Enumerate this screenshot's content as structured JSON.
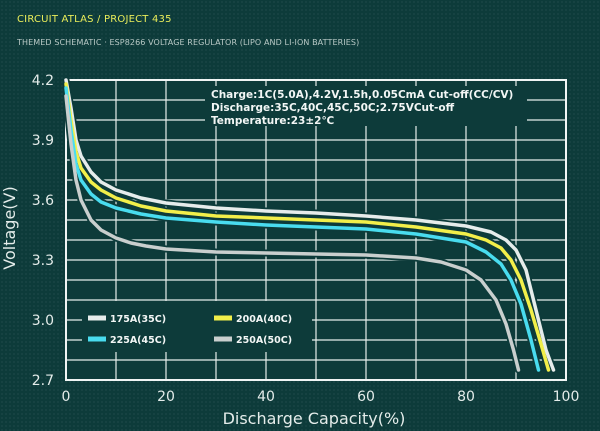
{
  "header": {
    "title": "CIRCUIT ATLAS / PROJECT 435",
    "subtitle": "THEMED SCHEMATIC · ESP8266 VOLTAGE REGULATOR (LIPO AND LI-ION BATTERIES)"
  },
  "chart_data": {
    "type": "line",
    "xlabel": "Discharge Capacity(%)",
    "ylabel": "Voltage(V)",
    "xlim": [
      0,
      100
    ],
    "ylim": [
      2.7,
      4.2
    ],
    "xticks": [
      0,
      20,
      40,
      60,
      80,
      100
    ],
    "yticks": [
      2.7,
      3.0,
      3.3,
      3.6,
      3.9,
      4.2
    ],
    "grid": true,
    "annotations": [
      "Charge:1C(5.0A),4.2V,1.5h,0.05CmA Cut-off(CC/CV)",
      "Discharge:35C,40C,45C,50C;2.75VCut-off",
      "Temperature:23±2℃"
    ],
    "legend_position": "bottom-left",
    "series": [
      {
        "name": "175A(35C)",
        "color": "#e6eceb",
        "x": [
          0,
          1,
          2,
          3,
          5,
          7,
          10,
          15,
          20,
          30,
          40,
          50,
          60,
          70,
          80,
          85,
          88,
          90,
          92,
          94,
          96,
          97.5
        ],
        "y": [
          4.2,
          4.06,
          3.9,
          3.82,
          3.74,
          3.69,
          3.65,
          3.61,
          3.585,
          3.56,
          3.545,
          3.535,
          3.52,
          3.5,
          3.47,
          3.44,
          3.4,
          3.35,
          3.25,
          3.05,
          2.85,
          2.75
        ]
      },
      {
        "name": "200A(40C)",
        "color": "#f2ef4a",
        "x": [
          0,
          1,
          2,
          3,
          5,
          7,
          10,
          15,
          20,
          30,
          40,
          50,
          60,
          70,
          80,
          84,
          87,
          89,
          91,
          93,
          95,
          96.5
        ],
        "y": [
          4.18,
          4.0,
          3.84,
          3.76,
          3.69,
          3.65,
          3.61,
          3.57,
          3.545,
          3.52,
          3.51,
          3.5,
          3.49,
          3.465,
          3.43,
          3.4,
          3.36,
          3.3,
          3.2,
          3.05,
          2.88,
          2.75
        ]
      },
      {
        "name": "225A(45C)",
        "color": "#49dcef",
        "x": [
          0,
          1,
          2,
          3,
          5,
          7,
          10,
          15,
          20,
          30,
          40,
          50,
          60,
          70,
          80,
          84,
          87,
          89,
          91,
          93,
          94.5
        ],
        "y": [
          4.16,
          3.95,
          3.78,
          3.7,
          3.63,
          3.59,
          3.56,
          3.53,
          3.51,
          3.49,
          3.475,
          3.465,
          3.455,
          3.43,
          3.39,
          3.34,
          3.28,
          3.2,
          3.08,
          2.9,
          2.75
        ]
      },
      {
        "name": "250A(50C)",
        "color": "#c9cfce",
        "x": [
          0,
          1,
          2,
          3,
          5,
          7,
          10,
          13,
          16,
          20,
          30,
          40,
          50,
          60,
          70,
          75,
          80,
          83,
          86,
          88,
          89.5,
          90.5
        ],
        "y": [
          4.12,
          3.88,
          3.7,
          3.6,
          3.5,
          3.45,
          3.41,
          3.385,
          3.37,
          3.355,
          3.34,
          3.335,
          3.33,
          3.325,
          3.31,
          3.29,
          3.25,
          3.2,
          3.1,
          2.98,
          2.85,
          2.75
        ]
      }
    ]
  }
}
